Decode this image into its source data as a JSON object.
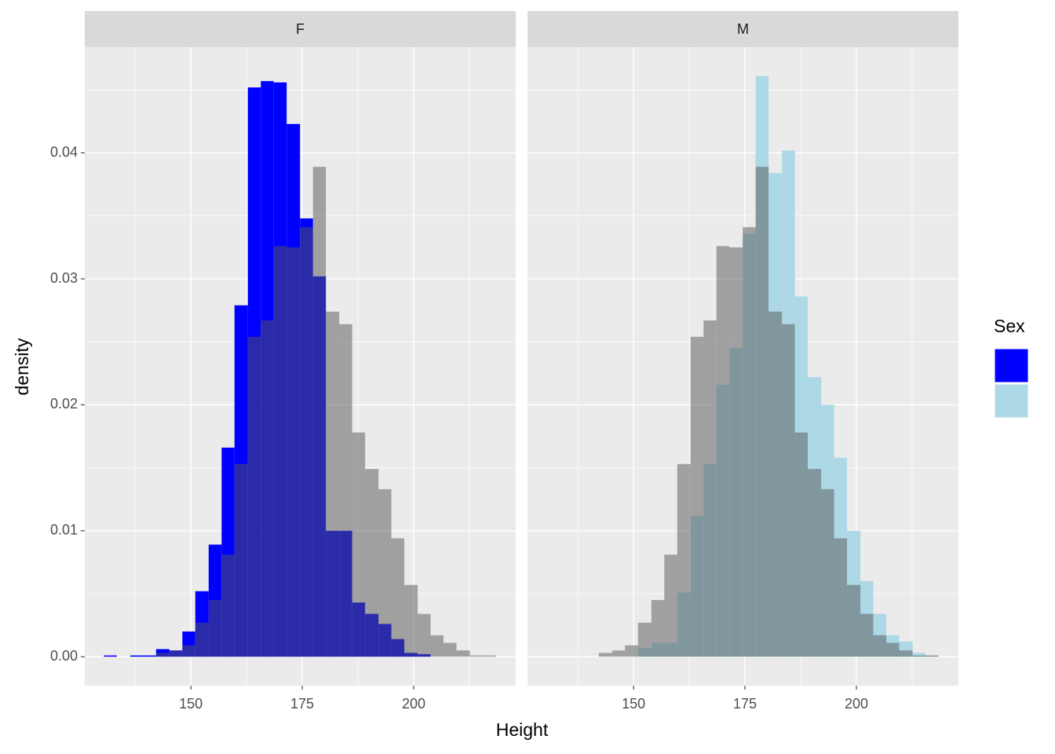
{
  "chart_data": {
    "type": "histogram",
    "xlabel": "Height",
    "ylabel": "density",
    "legend_title": "Sex",
    "bins": [
      130.5,
      133.4,
      136.4,
      139.3,
      142.2,
      145.2,
      148.1,
      151.0,
      154.0,
      156.9,
      159.8,
      162.8,
      165.7,
      168.6,
      171.5,
      174.5,
      177.4,
      180.3,
      183.3,
      186.2,
      189.1,
      192.1,
      195.0,
      197.9,
      200.9,
      203.8,
      206.7,
      209.6,
      212.6,
      215.5,
      218.4
    ],
    "xlim": [
      126.2,
      222.9
    ],
    "ylim": [
      -0.0023,
      0.0484
    ],
    "xticks": [
      150,
      175,
      200
    ],
    "yticks": [
      {
        "value": 0,
        "label": "0.00"
      },
      {
        "value": 0.01,
        "label": "0.01"
      },
      {
        "value": 0.02,
        "label": "0.02"
      },
      {
        "value": 0.03,
        "label": "0.03"
      },
      {
        "value": 0.04,
        "label": "0.04"
      }
    ],
    "xminor": [
      137.5,
      162.5,
      187.5,
      212.5
    ],
    "yminor": [
      0.005,
      0.015,
      0.025,
      0.035,
      0.045
    ],
    "grid": true,
    "background": {
      "color": "#555555",
      "opacity": 0.5,
      "values": [
        0,
        0,
        0,
        0,
        0.0003,
        0.0005,
        0.0009,
        0.0027,
        0.0045,
        0.0081,
        0.0153,
        0.0254,
        0.0267,
        0.0326,
        0.0325,
        0.0341,
        0.0389,
        0.0274,
        0.0264,
        0.0178,
        0.0149,
        0.0133,
        0.0094,
        0.0057,
        0.0034,
        0.0017,
        0.0011,
        0.0005,
        0.0001,
        0.0001
      ]
    },
    "facets": [
      {
        "title": "F",
        "color": "#0000ff",
        "values": [
          0.0001,
          0,
          0.0001,
          0.0001,
          0.0006,
          0.0005,
          0.002,
          0.0052,
          0.0089,
          0.0166,
          0.0279,
          0.0452,
          0.0457,
          0.0456,
          0.0423,
          0.0348,
          0.0302,
          0.01,
          0.01,
          0.0043,
          0.0034,
          0.0026,
          0.0014,
          0.0003,
          0.0002,
          0,
          0,
          0,
          0,
          0
        ]
      },
      {
        "title": "M",
        "color": "#add8e6",
        "values": [
          0,
          0,
          0,
          0,
          0,
          0,
          0,
          0.0007,
          0.0011,
          0.0011,
          0.0051,
          0.0112,
          0.0153,
          0.0216,
          0.0245,
          0.0336,
          0.0461,
          0.0384,
          0.0402,
          0.0286,
          0.0222,
          0.02,
          0.0158,
          0.01,
          0.006,
          0.0034,
          0.0017,
          0.0012,
          0.0003,
          0.0001
        ]
      }
    ]
  }
}
